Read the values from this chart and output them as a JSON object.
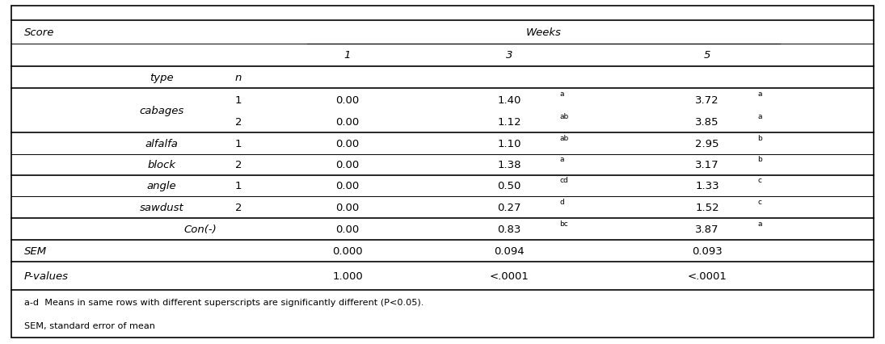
{
  "title_left": "Score",
  "header_weeks": "Weeks",
  "col_headers": [
    "1",
    "3",
    "5"
  ],
  "subheader_type": "type",
  "subheader_n": "n",
  "rows": [
    {
      "col0": "cabages",
      "col1": "1",
      "w1": "0.00",
      "w3": "1.40",
      "w3_sup": "a",
      "w5": "3.72",
      "w5_sup": "a"
    },
    {
      "col0": "",
      "col1": "2",
      "w1": "0.00",
      "w3": "1.12",
      "w3_sup": "ab",
      "w5": "3.85",
      "w5_sup": "a"
    },
    {
      "col0": "alfalfa",
      "col1": "1",
      "w1": "0.00",
      "w3": "1.10",
      "w3_sup": "ab",
      "w5": "2.95",
      "w5_sup": "b"
    },
    {
      "col0": "block",
      "col1": "2",
      "w1": "0.00",
      "w3": "1.38",
      "w3_sup": "a",
      "w5": "3.17",
      "w5_sup": "b"
    },
    {
      "col0": "angle",
      "col1": "1",
      "w1": "0.00",
      "w3": "0.50",
      "w3_sup": "cd",
      "w5": "1.33",
      "w5_sup": "c"
    },
    {
      "col0": "sawdust",
      "col1": "2",
      "w1": "0.00",
      "w3": "0.27",
      "w3_sup": "d",
      "w5": "1.52",
      "w5_sup": "c"
    }
  ],
  "con_row": {
    "w1": "0.00",
    "w3": "0.83",
    "w3_sup": "bc",
    "w5": "3.87",
    "w5_sup": "a"
  },
  "sem_row": {
    "w1": "0.000",
    "w3": "0.094",
    "w5": "0.093"
  },
  "pval_row": {
    "w1": "1.000",
    "w3": "<.0001",
    "w5": "<.0001"
  },
  "footnote1": "a-d  Means in same rows with different superscripts are significantly different (P<0.05).",
  "footnote2": "SEM, standard error of mean",
  "bg_color": "#ffffff",
  "border_color": "#000000",
  "text_color": "#000000",
  "font_size": 9.5,
  "sup_fontsize": 6.5
}
